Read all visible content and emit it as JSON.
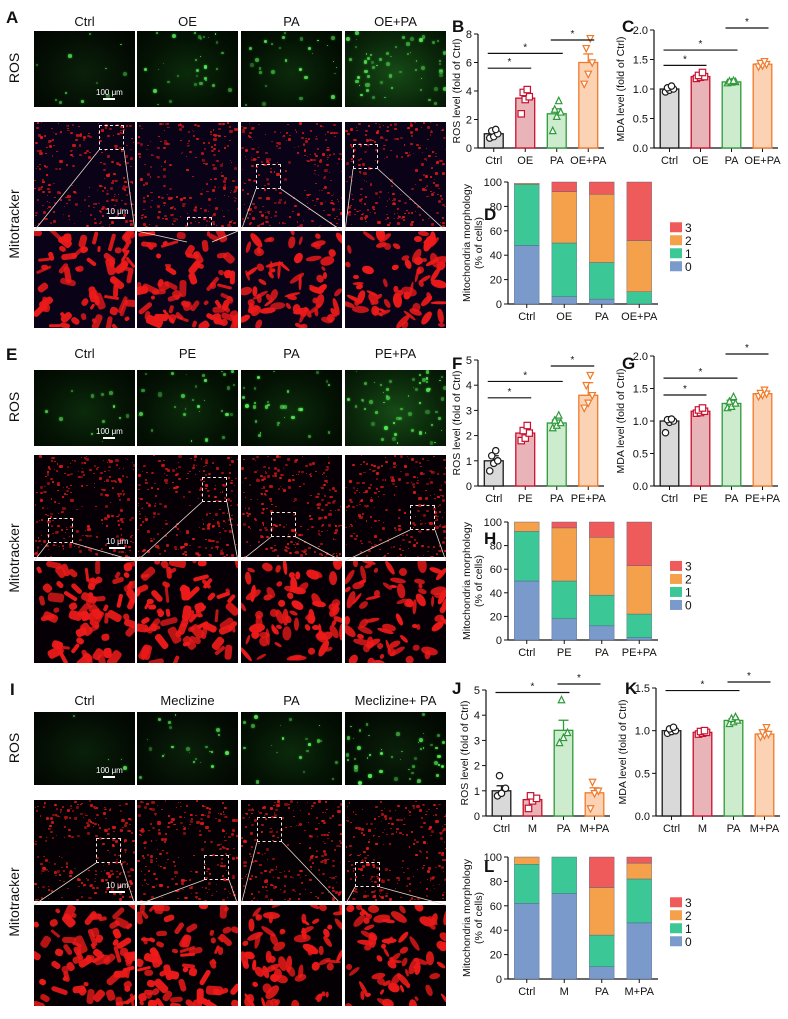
{
  "sections": [
    {
      "letter": "A",
      "columns": [
        "Ctrl",
        "OE",
        "PA",
        "OE+PA"
      ],
      "rows": [
        "ROS",
        "Mitotracker"
      ],
      "scale_ros": "100 μm",
      "scale_mito": "10 μm"
    },
    {
      "letter": "E",
      "columns": [
        "Ctrl",
        "PE",
        "PA",
        "PE+PA"
      ],
      "rows": [
        "ROS",
        "Mitotracker"
      ],
      "scale_ros": "100 μm",
      "scale_mito": "10 μm"
    },
    {
      "letter": "I",
      "columns": [
        "Ctrl",
        "Meclizine",
        "PA",
        "Meclizine+ PA"
      ],
      "rows": [
        "ROS",
        "Mitotracker"
      ],
      "scale_ros": "100 μm",
      "scale_mito": "10 μm"
    }
  ],
  "colors": {
    "ctrl": "#1a1a1a",
    "treat1": "#c8102e",
    "pa": "#2e9a3a",
    "combo": "#f07a2a",
    "ctrl_fill": "#d9d9d9",
    "treat1_fill": "#e8b4b8",
    "pa_fill": "#cdeccd",
    "combo_fill": "#fbd3b4",
    "morph3": "#ef5b5b",
    "morph2": "#f5a04a",
    "morph1": "#3cc896",
    "morph0": "#7a9acb"
  },
  "chart_data": [
    {
      "panel": "B",
      "type": "bar",
      "categories": [
        "Ctrl",
        "OE",
        "PA",
        "OE+PA"
      ],
      "values": [
        1.0,
        3.5,
        2.4,
        6.0
      ],
      "errors": [
        0.2,
        0.3,
        0.35,
        0.6
      ],
      "points": [
        [
          0.7,
          0.8,
          1.0,
          1.2,
          1.3
        ],
        [
          2.4,
          3.4,
          3.6,
          3.9,
          4.1
        ],
        [
          1.2,
          2.2,
          2.5,
          2.7,
          3.3
        ],
        [
          4.5,
          5.2,
          6.0,
          7.0,
          7.7
        ]
      ],
      "ylabel": "ROS level (fold of Ctrl)",
      "ylim": [
        0,
        8
      ],
      "yticks": [
        0,
        2,
        4,
        6,
        8
      ],
      "significance": [
        {
          "from": 0,
          "to": 1,
          "label": "*"
        },
        {
          "from": 0,
          "to": 2,
          "label": "*"
        },
        {
          "from": 2,
          "to": 3,
          "label": "*"
        }
      ]
    },
    {
      "panel": "C",
      "type": "bar",
      "categories": [
        "Ctrl",
        "OE",
        "PA",
        "OE+PA"
      ],
      "values": [
        1.0,
        1.21,
        1.12,
        1.42
      ],
      "errors": [
        0.02,
        0.03,
        0.02,
        0.03
      ],
      "points": [
        [
          0.95,
          0.98,
          1.0,
          1.02,
          1.05
        ],
        [
          1.18,
          1.2,
          1.21,
          1.23,
          1.28
        ],
        [
          1.1,
          1.11,
          1.12,
          1.13,
          1.14
        ],
        [
          1.38,
          1.4,
          1.42,
          1.44,
          1.47
        ]
      ],
      "ylabel": "MDA level (fold of Ctrl)",
      "ylim": [
        0,
        2.0
      ],
      "yticks": [
        0.0,
        0.5,
        1.0,
        1.5,
        2.0
      ],
      "significance": [
        {
          "from": 0,
          "to": 1,
          "label": "*"
        },
        {
          "from": 0,
          "to": 2,
          "label": "*"
        },
        {
          "from": 2,
          "to": 3,
          "label": "*"
        }
      ]
    },
    {
      "panel": "D",
      "type": "bar",
      "stacked": true,
      "categories": [
        "Ctrl",
        "OE",
        "PA",
        "OE+PA"
      ],
      "series": [
        {
          "name": "0",
          "values": [
            48,
            6,
            4,
            0
          ]
        },
        {
          "name": "1",
          "values": [
            50,
            44,
            30,
            10
          ]
        },
        {
          "name": "2",
          "values": [
            1,
            42,
            56,
            42
          ]
        },
        {
          "name": "3",
          "values": [
            0,
            8,
            10,
            48
          ]
        }
      ],
      "ylabel": "Mitochondria morphology (% of cells)",
      "ylim": [
        0,
        100
      ],
      "yticks": [
        0,
        20,
        40,
        60,
        80,
        100
      ],
      "legend": [
        "3",
        "2",
        "1",
        "0"
      ],
      "legend_position": "right"
    },
    {
      "panel": "F",
      "type": "bar",
      "categories": [
        "Ctrl",
        "PE",
        "PA",
        "PE+PA"
      ],
      "values": [
        1.0,
        2.1,
        2.5,
        3.6
      ],
      "errors": [
        0.2,
        0.15,
        0.12,
        0.5
      ],
      "points": [
        [
          0.6,
          0.9,
          1.0,
          1.2,
          1.4
        ],
        [
          1.8,
          1.9,
          2.1,
          2.2,
          2.4
        ],
        [
          2.3,
          2.4,
          2.5,
          2.6,
          2.8
        ],
        [
          3.1,
          3.3,
          3.6,
          4.0,
          4.4
        ]
      ],
      "ylabel": "ROS level (fold of Ctrl)",
      "ylim": [
        0,
        5
      ],
      "yticks": [
        0,
        1,
        2,
        3,
        4,
        5
      ],
      "significance": [
        {
          "from": 0,
          "to": 1,
          "label": "*"
        },
        {
          "from": 0,
          "to": 2,
          "label": "*"
        },
        {
          "from": 2,
          "to": 3,
          "label": "*"
        }
      ]
    },
    {
      "panel": "G",
      "type": "bar",
      "categories": [
        "Ctrl",
        "PE",
        "PA",
        "PE+PA"
      ],
      "values": [
        1.0,
        1.15,
        1.27,
        1.42
      ],
      "errors": [
        0.05,
        0.03,
        0.05,
        0.03
      ],
      "points": [
        [
          0.82,
          0.98,
          1.0,
          1.02,
          1.03
        ],
        [
          1.12,
          1.13,
          1.15,
          1.17,
          1.2
        ],
        [
          1.2,
          1.22,
          1.27,
          1.3,
          1.37
        ],
        [
          1.38,
          1.4,
          1.42,
          1.43,
          1.48
        ]
      ],
      "ylabel": "MDA level (fold of Ctrl)",
      "ylim": [
        0,
        2.0
      ],
      "yticks": [
        0.0,
        0.5,
        1.0,
        1.5,
        2.0
      ],
      "significance": [
        {
          "from": 0,
          "to": 1,
          "label": "*"
        },
        {
          "from": 0,
          "to": 2,
          "label": "*"
        },
        {
          "from": 2,
          "to": 3,
          "label": "*"
        }
      ]
    },
    {
      "panel": "H",
      "type": "bar",
      "stacked": true,
      "categories": [
        "Ctrl",
        "PE",
        "PA",
        "PE+PA"
      ],
      "series": [
        {
          "name": "0",
          "values": [
            50,
            18,
            12,
            2
          ]
        },
        {
          "name": "1",
          "values": [
            42,
            32,
            26,
            20
          ]
        },
        {
          "name": "2",
          "values": [
            8,
            45,
            49,
            41
          ]
        },
        {
          "name": "3",
          "values": [
            0,
            5,
            13,
            37
          ]
        }
      ],
      "ylabel": "Mitochondria morphology (% of cells)",
      "ylim": [
        0,
        100
      ],
      "yticks": [
        0,
        20,
        40,
        60,
        80,
        100
      ],
      "legend": [
        "3",
        "2",
        "1",
        "0"
      ],
      "legend_position": "right"
    },
    {
      "panel": "J",
      "type": "bar",
      "categories": [
        "Ctrl",
        "M",
        "PA",
        "M+PA"
      ],
      "values": [
        1.0,
        0.65,
        3.4,
        0.92
      ],
      "errors": [
        0.2,
        0.1,
        0.4,
        0.2
      ],
      "points": [
        [
          0.8,
          0.9,
          1.1,
          1.6
        ],
        [
          0.3,
          0.6,
          0.7,
          0.8
        ],
        [
          2.9,
          3.1,
          3.3,
          4.6
        ],
        [
          0.3,
          0.9,
          1.0,
          1.35
        ]
      ],
      "ylabel": "ROS level (fold of Ctrl)",
      "ylim": [
        0,
        5
      ],
      "yticks": [
        0,
        1,
        2,
        3,
        4,
        5
      ],
      "significance": [
        {
          "from": 0,
          "to": 2,
          "label": "*"
        },
        {
          "from": 2,
          "to": 3,
          "label": "*"
        }
      ]
    },
    {
      "panel": "K",
      "type": "bar",
      "categories": [
        "Ctrl",
        "M",
        "PA",
        "M+PA"
      ],
      "values": [
        1.0,
        0.98,
        1.12,
        0.96
      ],
      "errors": [
        0.02,
        0.01,
        0.02,
        0.03
      ],
      "points": [
        [
          0.97,
          0.99,
          1.0,
          1.02,
          1.04
        ],
        [
          0.96,
          0.97,
          0.98,
          0.99,
          1.0
        ],
        [
          1.08,
          1.1,
          1.12,
          1.14,
          1.16
        ],
        [
          0.93,
          0.95,
          0.96,
          0.98,
          1.04
        ]
      ],
      "ylabel": "MDA level (fold of Ctrl)",
      "ylim": [
        0,
        1.5
      ],
      "yticks": [
        0.0,
        0.5,
        1.0,
        1.5
      ],
      "significance": [
        {
          "from": 0,
          "to": 2,
          "label": "*"
        },
        {
          "from": 2,
          "to": 3,
          "label": "*"
        }
      ]
    },
    {
      "panel": "L",
      "type": "bar",
      "stacked": true,
      "categories": [
        "Ctrl",
        "M",
        "PA",
        "M+PA"
      ],
      "series": [
        {
          "name": "0",
          "values": [
            62,
            70,
            10,
            46
          ]
        },
        {
          "name": "1",
          "values": [
            32,
            30,
            26,
            36
          ]
        },
        {
          "name": "2",
          "values": [
            6,
            0,
            39,
            13
          ]
        },
        {
          "name": "3",
          "values": [
            0,
            0,
            25,
            5
          ]
        }
      ],
      "ylabel": "Mitochondria morphology (% of cells)",
      "ylim": [
        0,
        100
      ],
      "yticks": [
        0,
        20,
        40,
        60,
        80,
        100
      ],
      "legend": [
        "3",
        "2",
        "1",
        "0"
      ],
      "legend_position": "right"
    }
  ]
}
